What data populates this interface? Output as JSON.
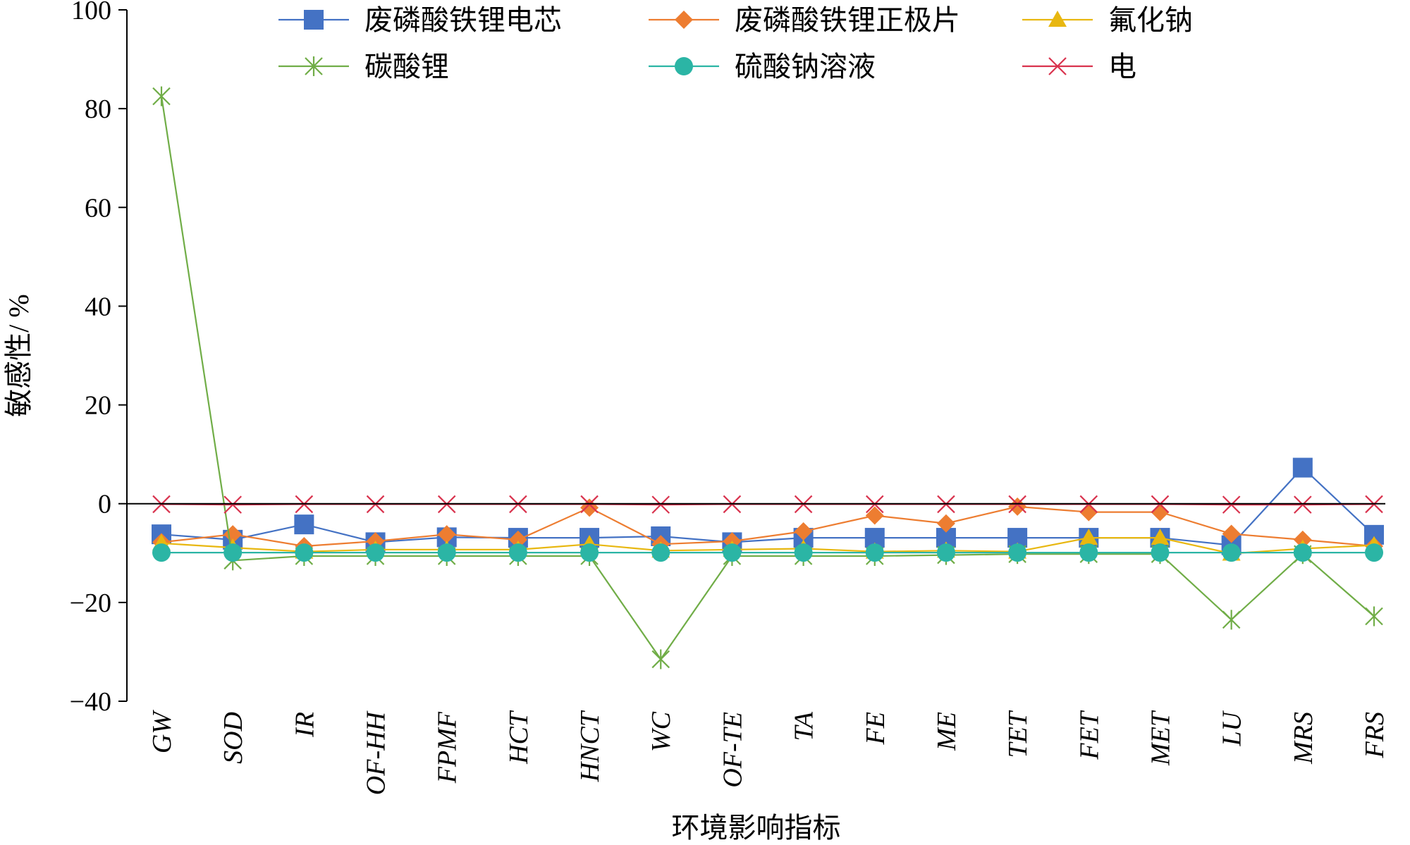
{
  "chart_data": {
    "type": "line",
    "xlabel": "环境影响指标",
    "ylabel": "敏感性/ %",
    "ylim": [
      -40,
      100
    ],
    "yticks": [
      -40,
      -20,
      0,
      20,
      40,
      60,
      80,
      100
    ],
    "ytick_labels": [
      "−40",
      "−20",
      "0",
      "20",
      "40",
      "60",
      "80",
      "100"
    ],
    "categories": [
      "GW",
      "SOD",
      "IR",
      "OF-HH",
      "FPMF",
      "HCT",
      "HNCT",
      "WC",
      "OF-TE",
      "TA",
      "FE",
      "ME",
      "TET",
      "FET",
      "MET",
      "LU",
      "MRS",
      "FRS"
    ],
    "grid": false,
    "legend_position": "top",
    "series": [
      {
        "name": "废磷酸铁锂电芯",
        "color": "#4472c4",
        "marker": "square",
        "values": [
          -6.2,
          -7.3,
          -4.2,
          -7.8,
          -6.8,
          -6.9,
          -6.9,
          -6.6,
          -7.8,
          -6.9,
          -6.9,
          -6.9,
          -6.9,
          -6.9,
          -6.9,
          -8.4,
          7.3,
          -6.3
        ]
      },
      {
        "name": "废磷酸铁锂正极片",
        "color": "#ed7d31",
        "marker": "diamond",
        "values": [
          -7.8,
          -6.2,
          -8.6,
          -7.6,
          -6.2,
          -7.3,
          -0.8,
          -8.2,
          -7.6,
          -5.6,
          -2.4,
          -4.0,
          -0.6,
          -1.7,
          -1.7,
          -6.1,
          -7.3,
          -8.6
        ]
      },
      {
        "name": "氟化钠",
        "color": "#e8b710",
        "marker": "triangle",
        "values": [
          -8.0,
          -8.9,
          -9.7,
          -9.3,
          -9.3,
          -9.3,
          -8.2,
          -9.5,
          -9.3,
          -9.1,
          -9.7,
          -9.5,
          -9.7,
          -6.9,
          -6.9,
          -10.1,
          -9.1,
          -8.4
        ]
      },
      {
        "name": "碳酸锂",
        "color": "#70ad47",
        "marker": "star",
        "values": [
          82.5,
          -11.5,
          -10.6,
          -10.6,
          -10.6,
          -10.6,
          -10.6,
          -31.5,
          -10.6,
          -10.6,
          -10.6,
          -10.4,
          -10.2,
          -10.2,
          -10.2,
          -23.5,
          -10.2,
          -22.8
        ]
      },
      {
        "name": "硫酸钠溶液",
        "color": "#2bb5a5",
        "marker": "circle",
        "values": [
          -9.9,
          -9.9,
          -9.9,
          -9.9,
          -9.9,
          -9.9,
          -9.9,
          -9.9,
          -9.9,
          -9.9,
          -9.9,
          -9.9,
          -9.9,
          -9.9,
          -9.9,
          -9.9,
          -9.9,
          -9.9
        ]
      },
      {
        "name": "电",
        "color": "#d9334e",
        "marker": "x",
        "values": [
          -0.1,
          -0.2,
          -0.1,
          -0.1,
          -0.1,
          -0.1,
          -0.1,
          -0.2,
          -0.1,
          -0.1,
          -0.1,
          -0.1,
          -0.1,
          -0.1,
          -0.1,
          -0.2,
          -0.2,
          -0.1
        ]
      }
    ]
  }
}
